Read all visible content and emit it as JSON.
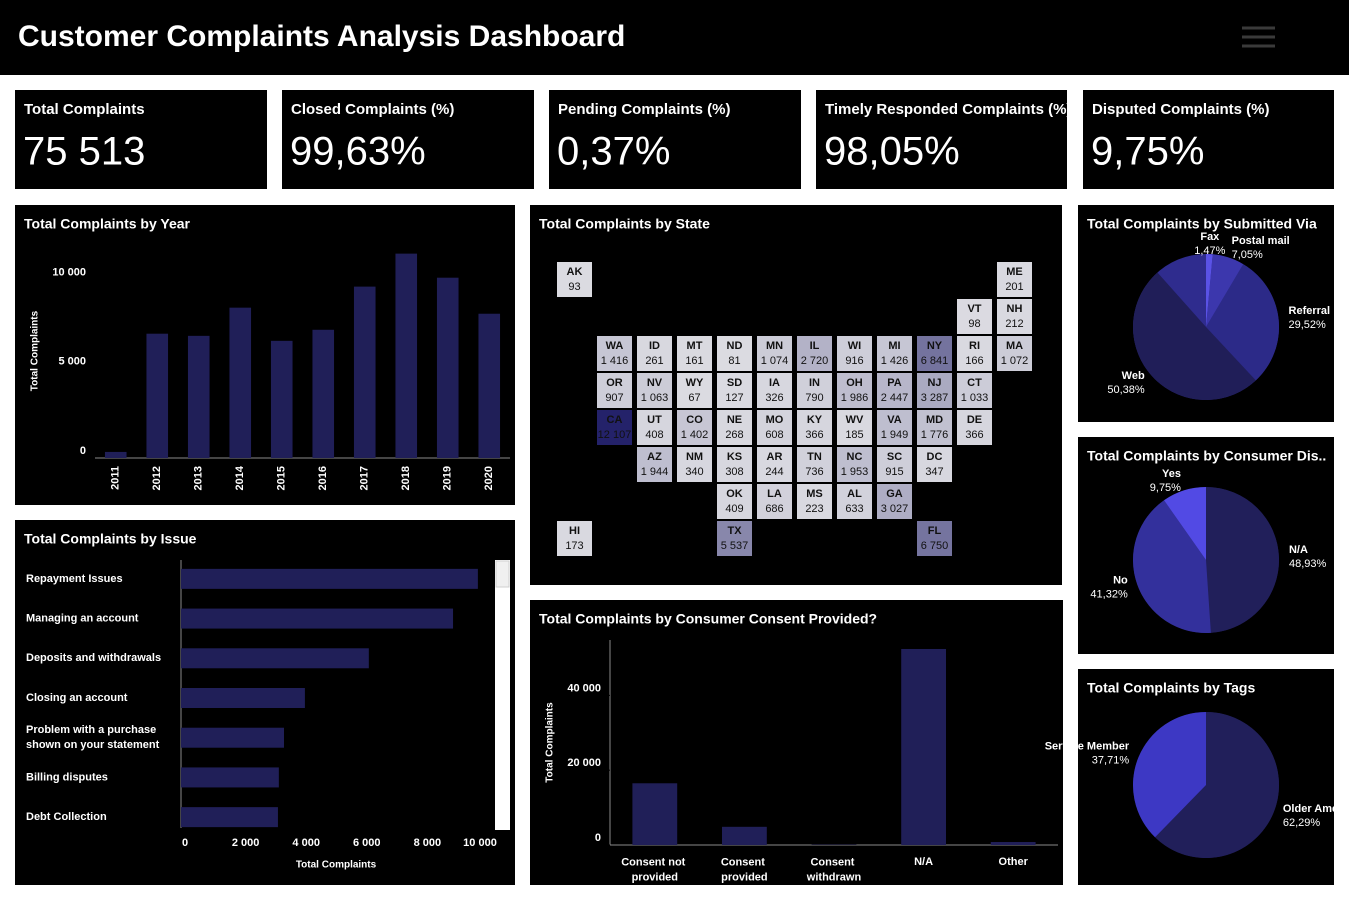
{
  "header": {
    "title": "Customer Complaints Analysis Dashboard"
  },
  "kpis": [
    {
      "label": "Total Complaints",
      "value": "75 513"
    },
    {
      "label": "Closed Complaints (%)",
      "value": "99,63%"
    },
    {
      "label": "Pending Complaints (%)",
      "value": "0,37%"
    },
    {
      "label": "Timely Responded Complaints (%)",
      "value": "98,05%"
    },
    {
      "label": "Disputed Complaints (%)",
      "value": "9,75%"
    }
  ],
  "chart_data": [
    {
      "type": "bar",
      "title": "Total Complaints by Year",
      "y_label": "Total Complaints",
      "categories": [
        "2011",
        "2012",
        "2013",
        "2014",
        "2015",
        "2016",
        "2017",
        "2018",
        "2019",
        "2020"
      ],
      "values": [
        340,
        6970,
        6850,
        8430,
        6570,
        7190,
        9610,
        11460,
        10110,
        8090
      ],
      "color": "#201f58",
      "ylim": [
        0,
        12000
      ],
      "yticks": [
        0,
        {
          "value": 5000,
          "label": "5 000"
        },
        {
          "value": 10000,
          "label": "10 000"
        }
      ]
    },
    {
      "type": "barh",
      "title": "Total Complaints by Issue",
      "x_label": "Total Complaints",
      "categories": [
        "Repayment Issues",
        "Managing an account",
        "Deposits and withdrawals",
        "Closing an account",
        "Problem with a purchase shown on your statement",
        "Billing disputes",
        "Debt Collection"
      ],
      "values": [
        9800,
        8980,
        6200,
        4090,
        3400,
        3230,
        3200
      ],
      "color": "#201f58",
      "xlim": [
        0,
        10200
      ],
      "xticks": [
        0,
        {
          "value": 2000,
          "label": "2 000"
        },
        {
          "value": 4000,
          "label": "4 000"
        },
        {
          "value": 6000,
          "label": "6 000"
        },
        {
          "value": 8000,
          "label": "8 000"
        },
        {
          "value": 10000,
          "label": "10 000"
        }
      ]
    },
    {
      "type": "tilemap",
      "title": "Total Complaints by State",
      "categories": [
        "AK",
        "ME",
        "VT",
        "NH",
        "WA",
        "ID",
        "MT",
        "ND",
        "MN",
        "IL",
        "WI",
        "MI",
        "NY",
        "RI",
        "MA",
        "OR",
        "NV",
        "WY",
        "SD",
        "IA",
        "IN",
        "OH",
        "PA",
        "NJ",
        "CT",
        "CA",
        "UT",
        "CO",
        "NE",
        "MO",
        "KY",
        "WV",
        "VA",
        "MD",
        "DE",
        "AZ",
        "NM",
        "KS",
        "AR",
        "TN",
        "NC",
        "SC",
        "DC",
        "OK",
        "LA",
        "MS",
        "AL",
        "GA",
        "HI",
        "TX",
        "FL"
      ],
      "values": [
        93,
        201,
        98,
        212,
        1416,
        261,
        161,
        81,
        1074,
        2720,
        916,
        1426,
        6841,
        166,
        1072,
        907,
        1063,
        67,
        127,
        326,
        790,
        1986,
        2447,
        3287,
        1033,
        12107,
        408,
        1402,
        268,
        608,
        366,
        185,
        1949,
        1776,
        366,
        1944,
        340,
        308,
        244,
        736,
        1953,
        915,
        347,
        409,
        686,
        223,
        633,
        3027,
        173,
        5537,
        6750
      ],
      "value_labels": [
        "93",
        "201",
        "98",
        "212",
        "1 416",
        "261",
        "161",
        "81",
        "1 074",
        "2 720",
        "916",
        "1 426",
        "6 841",
        "166",
        "1 072",
        "907",
        "1 063",
        "67",
        "127",
        "326",
        "790",
        "1 986",
        "2 447",
        "3 287",
        "1 033",
        "12 107",
        "408",
        "1 402",
        "268",
        "608",
        "366",
        "185",
        "1 949",
        "1 776",
        "366",
        "1 944",
        "340",
        "308",
        "244",
        "736",
        "1 953",
        "915",
        "347",
        "409",
        "686",
        "223",
        "633",
        "3 027",
        "173",
        "5 537",
        "6 750"
      ],
      "color_range": [
        "#dcdce2",
        "#24226a"
      ]
    },
    {
      "type": "bar",
      "title": "Total Complaints by Consumer Consent Provided?",
      "y_label": "Total Complaints",
      "categories": [
        "Consent not provided",
        "Consent provided",
        "Consent withdrawn",
        "N/A",
        "Other"
      ],
      "values": [
        16500,
        4860,
        100,
        52400,
        800
      ],
      "color": "#201f58",
      "ylim": [
        0,
        54800
      ],
      "yticks": [
        0,
        {
          "value": 20000,
          "label": "20 000"
        },
        {
          "value": 40000,
          "label": "40 000"
        }
      ]
    },
    {
      "type": "pie",
      "title": "Total Complaints by Submitted Via",
      "categories": [
        "Fax",
        "Postal mail",
        "Referral",
        "Web"
      ],
      "values": [
        1.47,
        7.05,
        29.52,
        50.38
      ],
      "value_labels": [
        "1,47%",
        "7,05%",
        "29,52%",
        "50,38%"
      ],
      "colors": [
        "#5a52e6",
        "#3c37ad",
        "#2c2a88",
        "#201e58"
      ]
    },
    {
      "type": "pie",
      "title": "Total Complaints by Consumer Dis..",
      "categories": [
        "N/A",
        "No",
        "Yes"
      ],
      "values": [
        48.93,
        41.32,
        9.75
      ],
      "value_labels": [
        "48,93%",
        "41,32%",
        "9,75%"
      ],
      "colors": [
        "#211f5a",
        "#33309c",
        "#524ae4"
      ]
    },
    {
      "type": "pie",
      "title": "Total Complaints by Tags",
      "categories": [
        "Older American",
        "Service Member"
      ],
      "values": [
        62.29,
        37.71
      ],
      "value_labels": [
        "62,29%",
        "37,71%"
      ],
      "colors": [
        "#211f5a",
        "#3d38c4"
      ]
    }
  ]
}
